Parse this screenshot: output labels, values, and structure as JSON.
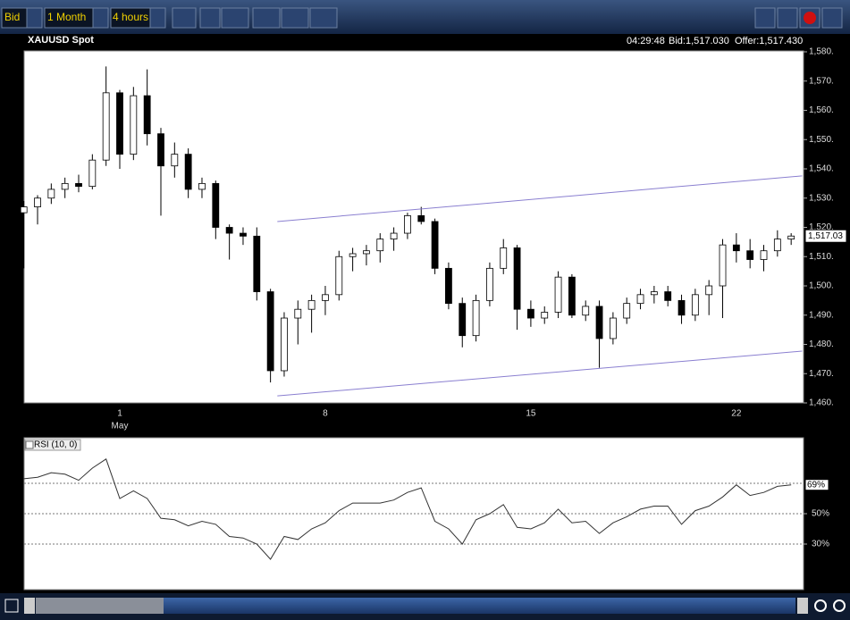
{
  "toolbar": {
    "price_side": "Bid",
    "range": "1 Month",
    "interval": "4 hours"
  },
  "header": {
    "symbol": "XAUUSD Spot",
    "time": "04:29:48",
    "bid": "Bid:1,517.030",
    "offer": "Offer:1,517.430"
  },
  "chart_data": [
    {
      "type": "candlestick",
      "categories": [
        null,
        null,
        null,
        null,
        null,
        null,
        null,
        "1",
        null,
        null,
        null,
        null,
        null,
        null,
        null,
        null,
        null,
        null,
        null,
        null,
        null,
        null,
        "8",
        null,
        null,
        null,
        null,
        null,
        null,
        null,
        null,
        null,
        null,
        null,
        null,
        null,
        null,
        "15",
        null,
        null,
        null,
        null,
        null,
        null,
        null,
        null,
        null,
        null,
        null,
        null,
        null,
        null,
        "22",
        null,
        null,
        null,
        null
      ],
      "month_label": "May",
      "open": [
        1525,
        1527,
        1530,
        1533,
        1535,
        1534,
        1543,
        1566,
        1545,
        1565,
        1552,
        1541,
        1545,
        1533,
        1535,
        1520,
        1518,
        1517,
        1498,
        1471,
        1489,
        1492,
        1495,
        1497,
        1510,
        1511,
        1512,
        1516,
        1518,
        1524,
        1522,
        1506,
        1494,
        1483,
        1495,
        1506,
        1513,
        1492,
        1489,
        1491,
        1503,
        1490,
        1493,
        1482,
        1489,
        1494,
        1497,
        1498,
        1495,
        1490,
        1497,
        1500,
        1514,
        1512,
        1509,
        1512,
        1516
      ],
      "high": [
        1529,
        1531,
        1535,
        1537,
        1538,
        1545,
        1575,
        1567,
        1568,
        1574,
        1554,
        1549,
        1547,
        1537,
        1536,
        1521,
        1520,
        1520,
        1499,
        1491,
        1495,
        1497,
        1500,
        1512,
        1513,
        1514,
        1518,
        1520,
        1525,
        1527,
        1523,
        1508,
        1496,
        1497,
        1508,
        1516,
        1514,
        1495,
        1493,
        1505,
        1504,
        1495,
        1495,
        1491,
        1496,
        1499,
        1500,
        1500,
        1497,
        1499,
        1502,
        1516,
        1518,
        1516,
        1514,
        1519,
        1518
      ],
      "low": [
        1506,
        1521,
        1528,
        1530,
        1532,
        1533,
        1541,
        1540,
        1543,
        1548,
        1524,
        1537,
        1530,
        1530,
        1516,
        1509,
        1514,
        1495,
        1467,
        1469,
        1480,
        1484,
        1490,
        1495,
        1505,
        1507,
        1508,
        1512,
        1516,
        1521,
        1504,
        1492,
        1479,
        1481,
        1493,
        1504,
        1485,
        1486,
        1487,
        1489,
        1489,
        1488,
        1472,
        1480,
        1487,
        1492,
        1494,
        1493,
        1487,
        1488,
        1490,
        1489,
        1508,
        1506,
        1505,
        1510,
        1514
      ],
      "close": [
        1527,
        1530,
        1533,
        1535,
        1534,
        1543,
        1566,
        1545,
        1565,
        1552,
        1541,
        1545,
        1533,
        1535,
        1520,
        1518,
        1517,
        1498,
        1471,
        1489,
        1492,
        1495,
        1497,
        1510,
        1511,
        1512,
        1516,
        1518,
        1524,
        1522,
        1506,
        1494,
        1483,
        1495,
        1506,
        1513,
        1492,
        1489,
        1491,
        1503,
        1490,
        1493,
        1482,
        1489,
        1494,
        1497,
        1498,
        1495,
        1490,
        1497,
        1500,
        1514,
        1512,
        1509,
        1512,
        1516,
        1517.03
      ],
      "up_color": "#ffffff",
      "down_color": "#000000",
      "ylim": [
        1460,
        1580
      ],
      "yticks": [
        {
          "value": 1460,
          "label": "1,460."
        },
        {
          "value": 1470,
          "label": "1,470."
        },
        {
          "value": 1480,
          "label": "1,480."
        },
        {
          "value": 1490,
          "label": "1,490."
        },
        {
          "value": 1500,
          "label": "1,500."
        },
        {
          "value": 1510,
          "label": "1,510."
        },
        {
          "value": 1520,
          "label": "1,520."
        },
        {
          "value": 1530,
          "label": "1,530."
        },
        {
          "value": 1540,
          "label": "1,540."
        },
        {
          "value": 1550,
          "label": "1,550."
        },
        {
          "value": 1560,
          "label": "1,560."
        },
        {
          "value": 1570,
          "label": "1,570."
        },
        {
          "value": 1580,
          "label": "1,580."
        }
      ],
      "current": {
        "value": 1517.03,
        "label": "1,517.03"
      },
      "trendlines": [
        {
          "x": [
            18.5,
            56.8
          ],
          "y": [
            1522,
            1537.6
          ],
          "color": "#8a7fd0"
        },
        {
          "x": [
            18.5,
            56.8
          ],
          "y": [
            1462.4,
            1477.7
          ],
          "color": "#8a7fd0"
        }
      ]
    },
    {
      "type": "line",
      "title": "RSI (10, 0)",
      "values": [
        73,
        74,
        77,
        76,
        72,
        80,
        86,
        60,
        65,
        60,
        47,
        46,
        42,
        45,
        43,
        35,
        34,
        30,
        20,
        35,
        33,
        40,
        44,
        52,
        57,
        57,
        57,
        59,
        64,
        67,
        45,
        40,
        30,
        46,
        50,
        56,
        41,
        40,
        44,
        53,
        44,
        45,
        37,
        44,
        48,
        53,
        55,
        55,
        43,
        52,
        55,
        61,
        69,
        62,
        64,
        68,
        69
      ],
      "color": "#333333",
      "ylim": [
        0,
        100
      ],
      "yticks": [
        {
          "value": 30,
          "label": "30%"
        },
        {
          "value": 50,
          "label": "50%"
        }
      ],
      "levels": [
        30,
        50,
        70
      ],
      "current": {
        "value": 69,
        "label": "69%"
      }
    }
  ]
}
